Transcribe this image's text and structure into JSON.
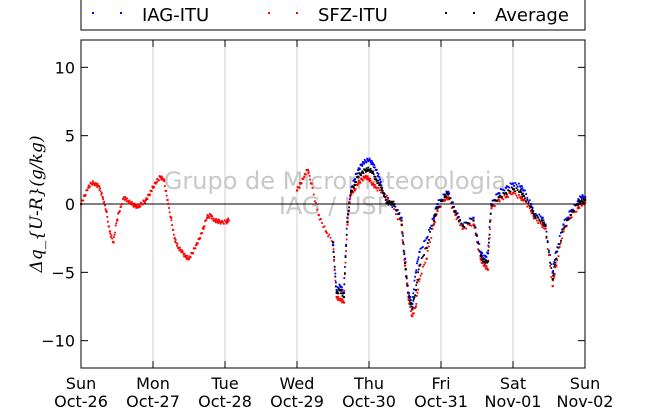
{
  "chart_data": {
    "type": "scatter",
    "ylabel": "Δq_{U-R}(g/kg)",
    "ylim": [
      -12,
      12
    ],
    "yticks": [
      -10,
      -5,
      0,
      5,
      10
    ],
    "xlim": [
      0,
      7
    ],
    "xticks": [
      {
        "x": 0,
        "day": "Sun",
        "date": "Oct-26"
      },
      {
        "x": 1,
        "day": "Mon",
        "date": "Oct-27"
      },
      {
        "x": 2,
        "day": "Tue",
        "date": "Oct-28"
      },
      {
        "x": 3,
        "day": "Wed",
        "date": "Oct-29"
      },
      {
        "x": 4,
        "day": "Thu",
        "date": "Oct-30"
      },
      {
        "x": 5,
        "day": "Fri",
        "date": "Oct-31"
      },
      {
        "x": 6,
        "day": "Sat",
        "date": "Nov-01"
      },
      {
        "x": 7,
        "day": "Sun",
        "date": "Nov-02"
      }
    ],
    "grid": "vertical",
    "legend": "top",
    "watermark": [
      "Grupo de Micrometeorologia",
      "IAG / USP"
    ],
    "series": [
      {
        "name": "IAG-ITU",
        "color": "#0000ff",
        "points": [
          [
            3.5,
            -3.0
          ],
          [
            3.55,
            -6.3
          ],
          [
            3.6,
            -6.0
          ],
          [
            3.65,
            -6.5
          ],
          [
            3.7,
            -1.0
          ],
          [
            3.75,
            1.0
          ],
          [
            3.8,
            1.8
          ],
          [
            3.85,
            2.5
          ],
          [
            3.9,
            2.9
          ],
          [
            3.95,
            3.1
          ],
          [
            4.0,
            3.2
          ],
          [
            4.05,
            3.0
          ],
          [
            4.1,
            2.5
          ],
          [
            4.15,
            1.8
          ],
          [
            4.2,
            0.8
          ],
          [
            4.3,
            0.1
          ],
          [
            4.45,
            -1.0
          ],
          [
            4.5,
            -4.0
          ],
          [
            4.55,
            -6.5
          ],
          [
            4.6,
            -7.3
          ],
          [
            4.65,
            -5.0
          ],
          [
            4.7,
            -3.5
          ],
          [
            4.8,
            -2.5
          ],
          [
            4.9,
            -1.0
          ],
          [
            4.95,
            0.0
          ],
          [
            5.05,
            0.7
          ],
          [
            5.1,
            0.9
          ],
          [
            5.2,
            -0.5
          ],
          [
            5.3,
            -1.5
          ],
          [
            5.45,
            -1.0
          ],
          [
            5.55,
            -3.5
          ],
          [
            5.6,
            -4.0
          ],
          [
            5.65,
            -3.6
          ],
          [
            5.7,
            0.0
          ],
          [
            5.8,
            0.8
          ],
          [
            5.9,
            1.2
          ],
          [
            6.0,
            1.5
          ],
          [
            6.1,
            1.3
          ],
          [
            6.15,
            1.0
          ],
          [
            6.25,
            0.0
          ],
          [
            6.3,
            -0.8
          ],
          [
            6.4,
            -1.0
          ],
          [
            6.45,
            -1.5
          ],
          [
            6.55,
            -5.0
          ],
          [
            6.6,
            -3.5
          ],
          [
            6.7,
            -1.5
          ],
          [
            6.8,
            -0.5
          ],
          [
            6.9,
            0.2
          ],
          [
            6.95,
            0.5
          ],
          [
            7.0,
            0.5
          ]
        ]
      },
      {
        "name": "SFZ-ITU",
        "color": "#ff0000",
        "points": [
          [
            0.0,
            0.0
          ],
          [
            0.05,
            0.6
          ],
          [
            0.1,
            1.2
          ],
          [
            0.15,
            1.5
          ],
          [
            0.2,
            1.5
          ],
          [
            0.25,
            1.3
          ],
          [
            0.3,
            0.5
          ],
          [
            0.35,
            -0.5
          ],
          [
            0.4,
            -2.0
          ],
          [
            0.45,
            -2.8
          ],
          [
            0.5,
            -1.2
          ],
          [
            0.55,
            -0.2
          ],
          [
            0.6,
            0.5
          ],
          [
            0.65,
            0.2
          ],
          [
            0.7,
            0.0
          ],
          [
            0.75,
            -0.1
          ],
          [
            0.8,
            -0.2
          ],
          [
            0.85,
            0.0
          ],
          [
            0.9,
            0.3
          ],
          [
            0.95,
            0.7
          ],
          [
            1.0,
            1.2
          ],
          [
            1.05,
            1.6
          ],
          [
            1.1,
            2.0
          ],
          [
            1.15,
            1.8
          ],
          [
            1.2,
            0.3
          ],
          [
            1.25,
            -1.0
          ],
          [
            1.3,
            -2.5
          ],
          [
            1.35,
            -3.2
          ],
          [
            1.4,
            -3.5
          ],
          [
            1.45,
            -3.8
          ],
          [
            1.5,
            -4.0
          ],
          [
            1.55,
            -3.6
          ],
          [
            1.6,
            -3.0
          ],
          [
            1.65,
            -2.5
          ],
          [
            1.7,
            -1.8
          ],
          [
            1.75,
            -1.0
          ],
          [
            1.8,
            -0.8
          ],
          [
            1.85,
            -1.2
          ],
          [
            1.9,
            -1.3
          ],
          [
            1.95,
            -1.3
          ],
          [
            2.02,
            -1.3
          ],
          [
            2.05,
            -1.2
          ],
          [
            3.0,
            1.0
          ],
          [
            3.05,
            1.5
          ],
          [
            3.1,
            2.0
          ],
          [
            3.15,
            2.5
          ],
          [
            3.2,
            1.5
          ],
          [
            3.3,
            -0.8
          ],
          [
            3.4,
            -2.0
          ],
          [
            3.5,
            -2.8
          ],
          [
            3.55,
            -6.8
          ],
          [
            3.6,
            -7.0
          ],
          [
            3.65,
            -7.2
          ],
          [
            3.7,
            -1.5
          ],
          [
            3.75,
            0.8
          ],
          [
            3.8,
            1.0
          ],
          [
            3.85,
            1.5
          ],
          [
            3.9,
            1.8
          ],
          [
            3.95,
            2.0
          ],
          [
            4.0,
            1.8
          ],
          [
            4.05,
            1.5
          ],
          [
            4.1,
            1.2
          ],
          [
            4.2,
            0.8
          ],
          [
            4.3,
            0.1
          ],
          [
            4.45,
            -1.5
          ],
          [
            4.5,
            -4.5
          ],
          [
            4.55,
            -7.0
          ],
          [
            4.6,
            -8.2
          ],
          [
            4.65,
            -7.5
          ],
          [
            4.7,
            -5.5
          ],
          [
            4.8,
            -4.0
          ],
          [
            4.9,
            -1.5
          ],
          [
            4.95,
            -0.5
          ],
          [
            5.05,
            0.3
          ],
          [
            5.1,
            0.5
          ],
          [
            5.2,
            -0.8
          ],
          [
            5.3,
            -1.8
          ],
          [
            5.45,
            -1.5
          ],
          [
            5.55,
            -4.0
          ],
          [
            5.6,
            -4.5
          ],
          [
            5.65,
            -4.8
          ],
          [
            5.7,
            -0.3
          ],
          [
            5.8,
            0.3
          ],
          [
            5.9,
            0.5
          ],
          [
            6.0,
            0.8
          ],
          [
            6.1,
            0.5
          ],
          [
            6.15,
            0.3
          ],
          [
            6.25,
            -0.5
          ],
          [
            6.3,
            -1.0
          ],
          [
            6.4,
            -1.5
          ],
          [
            6.45,
            -1.8
          ],
          [
            6.55,
            -6.0
          ],
          [
            6.6,
            -4.5
          ],
          [
            6.7,
            -2.0
          ],
          [
            6.8,
            -1.0
          ],
          [
            6.9,
            -0.3
          ],
          [
            6.95,
            0.0
          ],
          [
            7.0,
            0.1
          ]
        ]
      },
      {
        "name": "Average",
        "color": "#000000",
        "points": [
          [
            3.5,
            -2.8
          ],
          [
            3.55,
            -6.5
          ],
          [
            3.6,
            -6.3
          ],
          [
            3.65,
            -6.8
          ],
          [
            3.7,
            -1.3
          ],
          [
            3.75,
            0.9
          ],
          [
            3.8,
            1.4
          ],
          [
            3.85,
            2.0
          ],
          [
            3.9,
            2.3
          ],
          [
            3.95,
            2.5
          ],
          [
            4.0,
            2.5
          ],
          [
            4.05,
            2.3
          ],
          [
            4.1,
            1.8
          ],
          [
            4.15,
            1.4
          ],
          [
            4.2,
            0.8
          ],
          [
            4.25,
            0.1
          ],
          [
            4.3,
            0.1
          ],
          [
            4.35,
            0.0
          ],
          [
            4.45,
            -1.2
          ],
          [
            4.5,
            -4.3
          ],
          [
            4.55,
            -6.8
          ],
          [
            4.6,
            -7.7
          ],
          [
            4.65,
            -6.3
          ],
          [
            4.7,
            -4.5
          ],
          [
            4.8,
            -3.2
          ],
          [
            4.9,
            -1.2
          ],
          [
            4.95,
            -0.3
          ],
          [
            5.05,
            0.5
          ],
          [
            5.1,
            0.7
          ],
          [
            5.2,
            -0.6
          ],
          [
            5.3,
            -1.6
          ],
          [
            5.45,
            -1.2
          ],
          [
            5.55,
            -3.8
          ],
          [
            5.6,
            -4.2
          ],
          [
            5.65,
            -4.2
          ],
          [
            5.7,
            -0.1
          ],
          [
            5.8,
            0.5
          ],
          [
            5.9,
            0.8
          ],
          [
            6.0,
            1.1
          ],
          [
            6.1,
            0.9
          ],
          [
            6.15,
            0.6
          ],
          [
            6.25,
            -0.2
          ],
          [
            6.3,
            -0.9
          ],
          [
            6.4,
            -1.2
          ],
          [
            6.45,
            -1.6
          ],
          [
            6.55,
            -5.5
          ],
          [
            6.6,
            -4.0
          ],
          [
            6.7,
            -1.8
          ],
          [
            6.8,
            -0.8
          ],
          [
            6.9,
            0.0
          ],
          [
            6.95,
            0.2
          ],
          [
            7.0,
            0.3
          ]
        ]
      }
    ]
  }
}
